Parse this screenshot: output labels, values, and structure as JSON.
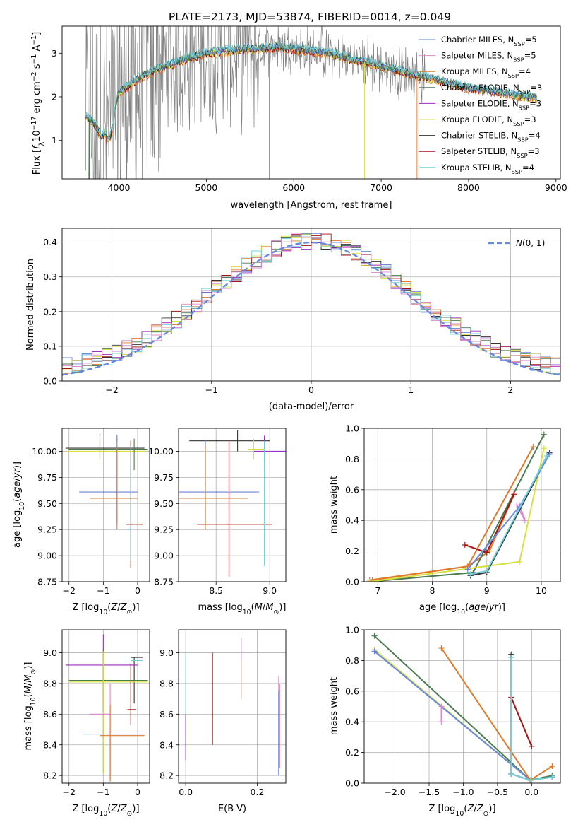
{
  "figure_title": "PLATE=2173, MJD=53874, FIBERID=0014, z=0.049",
  "colors": {
    "ChabrierMILES": "#6688dd",
    "SalpeterMILES": "#e07a2a",
    "KroupaMILES": "#e07a2a",
    "ChabrierELODIE": "#4a7a50",
    "SalpeterELODIE": "#9a2fc0",
    "KroupaELODIE": "#d8e040",
    "ChabrierSTELIB": "#333333",
    "SalpeterSTELIB": "#aa1111",
    "KroupaSTELIB": "#70d0dc",
    "data": "#808080",
    "pink": "#dd88cc",
    "normal": "#6688dd"
  },
  "chart_data": [
    {
      "id": "spectrum",
      "type": "line",
      "title": "PLATE=2173, MJD=53874, FIBERID=0014, z=0.049",
      "xlabel": "wavelength [Angstrom, rest frame]",
      "ylabel": "Flux [f_λ 10^-17 erg cm^-2 s^-1 A^-1]",
      "xlim": [
        3350,
        9050
      ],
      "ylim": [
        0.12,
        3.62
      ],
      "xticks": [
        4000,
        5000,
        6000,
        7000,
        8000,
        9000
      ],
      "yticks": [
        1,
        2,
        3
      ],
      "legend_position": "right",
      "legend": [
        "Chabrier MILES, N_SSP=5",
        "Salpeter MILES, N_SSP=5",
        "Kroupa MILES, N_SSP=4",
        "Chabrier ELODIE, N_SSP=3",
        "Salpeter ELODIE, N_SSP=3",
        "Kroupa ELODIE, N_SSP=3",
        "Chabrier STELIB, N_SSP=4",
        "Salpeter STELIB, N_SSP=3",
        "Kroupa STELIB, N_SSP=4"
      ],
      "continuum": [
        [
          3620,
          1.55
        ],
        [
          3700,
          1.45
        ],
        [
          3800,
          1.1
        ],
        [
          3900,
          1.3
        ],
        [
          4000,
          2.1
        ],
        [
          4200,
          2.4
        ],
        [
          4400,
          2.6
        ],
        [
          4600,
          2.75
        ],
        [
          4800,
          2.9
        ],
        [
          5000,
          3.0
        ],
        [
          5200,
          3.05
        ],
        [
          5400,
          3.1
        ],
        [
          5600,
          3.1
        ],
        [
          5800,
          3.15
        ],
        [
          6000,
          3.1
        ],
        [
          6200,
          3.05
        ],
        [
          6400,
          3.0
        ],
        [
          6600,
          2.9
        ],
        [
          6800,
          2.8
        ],
        [
          7000,
          2.7
        ],
        [
          7200,
          2.6
        ],
        [
          7400,
          2.5
        ],
        [
          7600,
          2.4
        ],
        [
          7800,
          2.3
        ],
        [
          8000,
          2.2
        ],
        [
          8200,
          2.15
        ],
        [
          8400,
          2.08
        ],
        [
          8600,
          2.02
        ],
        [
          8780,
          1.98
        ]
      ]
    },
    {
      "id": "residuals",
      "type": "line",
      "xlabel": "(data-model)/error",
      "ylabel": "Normed distribution",
      "xlim": [
        -2.5,
        2.5
      ],
      "ylim": [
        0,
        0.44
      ],
      "xticks": [
        -2,
        -1,
        0,
        1,
        2
      ],
      "yticks": [
        0.0,
        0.1,
        0.2,
        0.3,
        0.4
      ],
      "legend": [
        "N(0, 1)"
      ],
      "legend_position": "top-right",
      "grid": true
    },
    {
      "id": "age_vs_Z",
      "type": "scatter",
      "xlabel": "Z [log10(Z/Z⊙)]",
      "ylabel": "age [log10(age/yr)]",
      "xlim": [
        -2.2,
        0.35
      ],
      "ylim": [
        8.75,
        10.22
      ],
      "xticks": [
        -2,
        -1,
        0
      ],
      "yticks": [
        8.75,
        9.0,
        9.25,
        9.5,
        9.75,
        10.0
      ],
      "grid": true
    },
    {
      "id": "age_vs_mass",
      "type": "scatter",
      "xlabel": "mass [log10(M/M⊙)]",
      "xlim": [
        8.15,
        9.15
      ],
      "ylim": [
        8.75,
        10.22
      ],
      "xticks": [
        8.5,
        9.0
      ],
      "yticks": [
        8.75,
        9.0,
        9.25,
        9.5,
        9.75,
        10.0
      ],
      "grid": true
    },
    {
      "id": "weight_vs_age",
      "type": "line",
      "xlabel": "age [log10(age/yr)]",
      "ylabel": "mass weight",
      "xlim": [
        6.75,
        10.35
      ],
      "ylim": [
        0,
        1
      ],
      "xticks": [
        7,
        8,
        9,
        10
      ],
      "yticks": [
        0.0,
        0.2,
        0.4,
        0.6,
        0.8,
        1.0
      ],
      "grid": true,
      "series": [
        {
          "color": "#e07a2a",
          "x": [
            6.85,
            8.65,
            9.85
          ],
          "y": [
            0.01,
            0.1,
            0.88
          ]
        },
        {
          "color": "#e07a2a",
          "x": [
            6.9,
            8.65,
            9.05,
            9.5
          ],
          "y": [
            0.01,
            0.1,
            0.2,
            0.57
          ]
        },
        {
          "color": "#4a7a50",
          "x": [
            6.85,
            8.75,
            10.05
          ],
          "y": [
            0.0,
            0.06,
            0.96
          ]
        },
        {
          "color": "#aa1111",
          "x": [
            8.6,
            9.0,
            9.5
          ],
          "y": [
            0.24,
            0.19,
            0.57
          ]
        },
        {
          "color": "#dd88cc",
          "x": [
            9.55,
            9.7,
            9.6
          ],
          "y": [
            0.5,
            0.4,
            0.5
          ]
        },
        {
          "color": "#d8e040",
          "x": [
            6.85,
            9.6,
            10.05
          ],
          "y": [
            0.0,
            0.13,
            0.87
          ]
        },
        {
          "color": "#333333",
          "x": [
            8.7,
            9.0,
            10.15
          ],
          "y": [
            0.04,
            0.06,
            0.84
          ]
        },
        {
          "color": "#6688dd",
          "x": [
            8.65,
            9.6,
            10.15
          ],
          "y": [
            0.08,
            0.49,
            0.83
          ]
        },
        {
          "color": "#70d0dc",
          "x": [
            8.7,
            9.0,
            10.1
          ],
          "y": [
            0.05,
            0.07,
            0.82
          ]
        }
      ]
    },
    {
      "id": "mass_vs_Z",
      "type": "scatter",
      "xlabel": "Z [log10(Z/Z⊙)]",
      "ylabel": "mass [log10(M/M⊙)]",
      "xlim": [
        -2.2,
        0.35
      ],
      "ylim": [
        8.15,
        9.15
      ],
      "xticks": [
        -2,
        -1,
        0
      ],
      "yticks": [
        8.2,
        8.4,
        8.6,
        8.8,
        9.0
      ],
      "grid": true
    },
    {
      "id": "mass_vs_EBV",
      "type": "scatter",
      "xlabel": "E(B-V)",
      "xlim": [
        -0.02,
        0.28
      ],
      "ylim": [
        8.15,
        9.15
      ],
      "xticks": [
        0.0,
        0.2
      ],
      "yticks": [
        8.2,
        8.4,
        8.6,
        8.8,
        9.0
      ],
      "grid": true
    },
    {
      "id": "weight_vs_Z",
      "type": "line",
      "xlabel": "Z [log10(Z/Z⊙)]",
      "ylabel": "mass weight",
      "xlim": [
        -2.45,
        0.42
      ],
      "ylim": [
        0,
        1
      ],
      "xticks": [
        -2.0,
        -1.5,
        -1.0,
        -0.5,
        0.0
      ],
      "yticks": [
        0.0,
        0.2,
        0.4,
        0.6,
        0.8,
        1.0
      ],
      "grid": true,
      "series": [
        {
          "color": "#4a7a50",
          "x": [
            -2.3,
            -0.02,
            0.3
          ],
          "y": [
            0.96,
            0.02,
            0.05
          ]
        },
        {
          "color": "#d8e040",
          "x": [
            -2.3,
            -0.02,
            0.3
          ],
          "y": [
            0.87,
            0.02,
            0.04
          ]
        },
        {
          "color": "#6688dd",
          "x": [
            -2.3,
            -0.02,
            0.3
          ],
          "y": [
            0.86,
            0.02,
            0.04
          ]
        },
        {
          "color": "#e07a2a",
          "x": [
            -1.32,
            -0.02,
            0.3
          ],
          "y": [
            0.88,
            0.02,
            0.11
          ]
        },
        {
          "color": "#dd88cc",
          "x": [
            -1.32,
            -1.32
          ],
          "y": [
            0.5,
            0.4
          ]
        },
        {
          "color": "#aa1111",
          "x": [
            -0.3,
            0.0
          ],
          "y": [
            0.56,
            0.24
          ]
        },
        {
          "color": "#333333",
          "x": [
            -0.3,
            -0.3,
            -0.02,
            0.3
          ],
          "y": [
            0.84,
            0.06,
            0.02,
            0.04
          ]
        },
        {
          "color": "#70d0dc",
          "x": [
            -0.3,
            -0.3,
            -0.02,
            0.3
          ],
          "y": [
            0.82,
            0.06,
            0.02,
            0.04
          ]
        }
      ]
    }
  ]
}
